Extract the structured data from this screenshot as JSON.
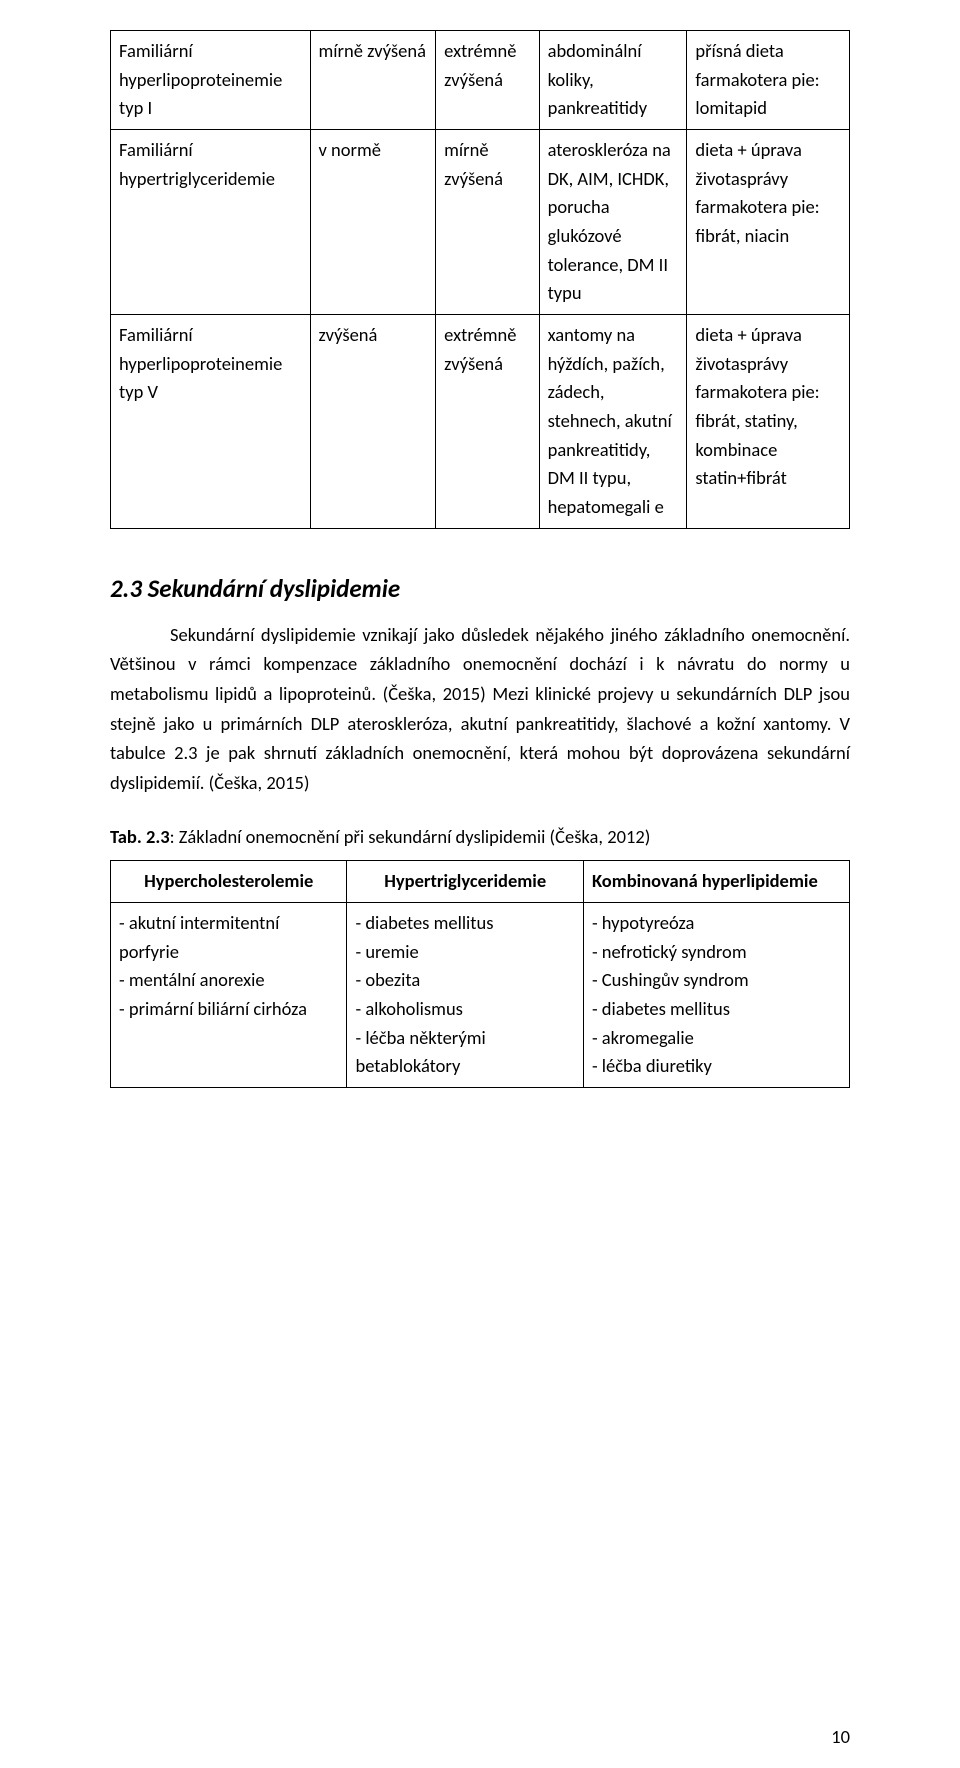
{
  "table1": {
    "rows": [
      {
        "c1": "Familiární hyperlipoproteinemie typ I",
        "c2": "mírně zvýšená",
        "c3": "extrémně zvýšená",
        "c4": "abdominální koliky, pankreatitidy",
        "c5": "přísná dieta farmakotera pie: lomitapid"
      },
      {
        "c1": "Familiární hypertriglyceridemie",
        "c2": "v normě",
        "c3": "mírně zvýšená",
        "c4": "ateroskleróza na DK, AIM, ICHDK, porucha glukózové tolerance, DM II typu",
        "c5": "dieta + úprava životasprávy farmakotera pie: fibrát, niacin"
      },
      {
        "c1": "Familiární hyperlipoproteinemie typ V",
        "c2": "zvýšená",
        "c3": "extrémně zvýšená",
        "c4": "xantomy na hýždích, pažích, zádech, stehnech, akutní pankreatitidy, DM II typu, hepatomegali e",
        "c5": "dieta + úprava životasprávy farmakotera pie: fibrát, statiny, kombinace statin+fibrát"
      }
    ]
  },
  "heading_2_3": "2.3 Sekundární dyslipidemie",
  "paragraph_2_3": "Sekundární dyslipidemie vznikají jako důsledek nějakého jiného základního onemocnění. Většinou v rámci kompenzace základního onemocnění dochází i k návratu do normy u metabolismu lipidů a lipoproteinů. (Češka, 2015) Mezi klinické projevy u sekundárních DLP jsou stejně jako u primárních DLP ateroskleróza, akutní pankreatitidy, šlachové a kožní xantomy. V tabulce 2.3 je pak shrnutí základních onemocnění, která mohou být doprovázena sekundární dyslipidemií. (Češka, 2015)",
  "tab_caption": {
    "label": "Tab. 2.3",
    "text": ": Základní onemocnění při sekundární dyslipidemii (Češka, 2012)"
  },
  "table2": {
    "headers": {
      "h1": "Hypercholesterolemie",
      "h2": "Hypertriglyceridemie",
      "h3": "Kombinovaná hyperlipidemie"
    },
    "row": {
      "c1": "- akutní intermitentní porfyrie\n- mentální anorexie\n- primární biliární cirhóza",
      "c2": "- diabetes mellitus\n- uremie\n- obezita\n- alkoholismus\n- léčba některými betablokátory",
      "c3": "- hypotyreóza\n- nefrotický syndrom\n- Cushingův syndrom\n- diabetes mellitus\n- akromegalie\n- léčba diuretiky"
    }
  },
  "page_number": "10"
}
